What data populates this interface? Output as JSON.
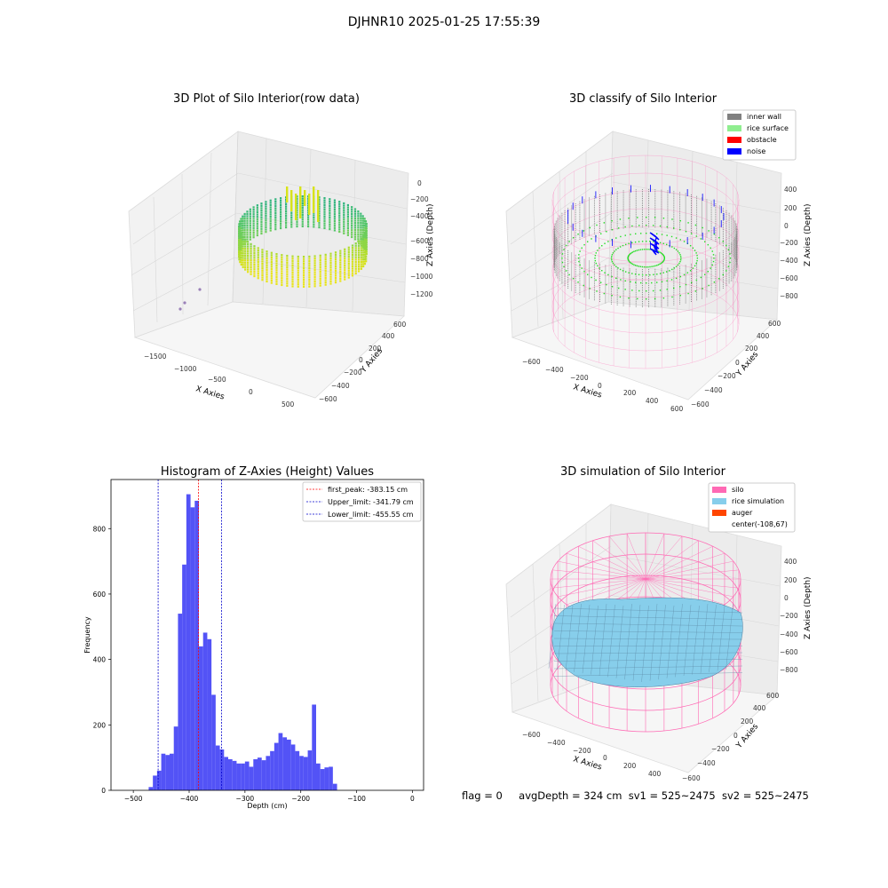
{
  "suptitle": "DJHNR10 2025-01-25 17:55:39",
  "status": {
    "flag": "flag = 0",
    "avg": "avgDepth = 324 cm",
    "sv1": "sv1 = 525~2475",
    "sv2": "sv2 = 525~2475"
  },
  "colors": {
    "hist_bar": "#4a4af5",
    "inner_wall": "#808080",
    "rice_surface": "#90ee90",
    "obstacle": "#ff0000",
    "noise": "#0000ff",
    "silo": "#ff69b4",
    "rice_simulation": "#87ceeb",
    "auger": "#ff4500",
    "first_peak": "#ff0000",
    "limits": "#0000cc"
  },
  "chart_data": [
    {
      "type": "scatter",
      "projection": "3d",
      "title": "3D Plot of Silo Interior(row data)",
      "xlabel": "X Axies",
      "ylabel": "Y Axies",
      "zlabel": "Z Axies (Depth)",
      "xticks": [
        "−1500",
        "−1000",
        "−500",
        "0",
        "500"
      ],
      "yticks": [
        "−600",
        "−400",
        "−200",
        "0",
        "200",
        "400",
        "600"
      ],
      "zticks": [
        "0",
        "−200",
        "−400",
        "−600",
        "−800",
        "−1000",
        "−1200"
      ],
      "colormap": "viridis"
    },
    {
      "type": "scatter",
      "projection": "3d",
      "title": "3D classify of Silo Interior",
      "xlabel": "X Axies",
      "ylabel": "Y Axies",
      "zlabel": "Z Axies (Depth)",
      "xticks": [
        "−600",
        "−400",
        "−200",
        "0",
        "200",
        "400",
        "600"
      ],
      "yticks": [
        "−600",
        "−400",
        "−200",
        "0",
        "200",
        "400",
        "600"
      ],
      "zticks": [
        "400",
        "200",
        "0",
        "−200",
        "−400",
        "−600",
        "−800"
      ],
      "legend": [
        "inner wall",
        "rice surface",
        "obstacle",
        "noise"
      ],
      "legend_position": "top-right"
    },
    {
      "type": "bar",
      "title": "Histogram of Z-Axies (Height) Values",
      "xlabel": "Depth (cm)",
      "ylabel": "Frequency",
      "xlim": [
        -540,
        20
      ],
      "ylim": [
        0,
        950
      ],
      "bin_width": 7.5,
      "bin_start": -472.5,
      "values": [
        10,
        45,
        60,
        112,
        108,
        112,
        195,
        540,
        690,
        905,
        865,
        885,
        440,
        482,
        462,
        292,
        137,
        125,
        102,
        95,
        90,
        82,
        82,
        88,
        72,
        95,
        100,
        92,
        105,
        120,
        145,
        175,
        162,
        155,
        140,
        120,
        105,
        102,
        122,
        262,
        82,
        65,
        70,
        72,
        20
      ],
      "xticks": [
        "−500",
        "−400",
        "−300",
        "−200",
        "−100",
        "0"
      ],
      "yticks": [
        "0",
        "200",
        "400",
        "600",
        "800"
      ],
      "lines": [
        {
          "label": "first_peak: -383.15 cm",
          "x": -383.15,
          "style": "red"
        },
        {
          "label": "Upper_limit: -341.79 cm",
          "x": -341.79,
          "style": "blue"
        },
        {
          "label": "Lower_limit: -455.55 cm",
          "x": -455.55,
          "style": "blue"
        }
      ],
      "legend_position": "top-right"
    },
    {
      "type": "surface",
      "projection": "3d",
      "title": "3D simulation of Silo Interior",
      "xlabel": "X Axies",
      "ylabel": "Y Axies",
      "zlabel": "Z Axies (Depth)",
      "xticks": [
        "−600",
        "−400",
        "−200",
        "0",
        "200",
        "400"
      ],
      "yticks": [
        "−600",
        "−400",
        "−200",
        "0",
        "200",
        "400",
        "600"
      ],
      "zticks": [
        "400",
        "200",
        "0",
        "−200",
        "−400",
        "−600",
        "−800"
      ],
      "legend": [
        "silo",
        "rice simulation",
        "auger",
        "center(-108,67)"
      ],
      "legend_position": "top-right"
    }
  ]
}
